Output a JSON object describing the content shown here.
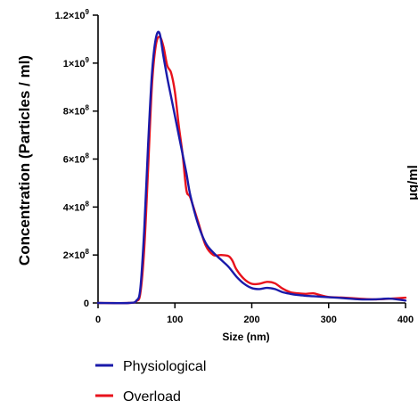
{
  "chart_data": {
    "type": "line",
    "title": "",
    "xlabel": "Size (nm)",
    "ylabel": "Concentration (Particles / ml)",
    "xlim": [
      0,
      400
    ],
    "ylim": [
      0,
      1200000000
    ],
    "x_ticks": [
      "0",
      "100",
      "200",
      "300",
      "400"
    ],
    "y_ticks": [
      {
        "value": 0,
        "base": "0",
        "exp": ""
      },
      {
        "value": 200000000,
        "base": "2×10",
        "exp": "8"
      },
      {
        "value": 400000000,
        "base": "4×10",
        "exp": "8"
      },
      {
        "value": 600000000,
        "base": "6×10",
        "exp": "8"
      },
      {
        "value": 800000000,
        "base": "8×10",
        "exp": "8"
      },
      {
        "value": 1000000000,
        "base": "1×10",
        "exp": "9"
      },
      {
        "value": 1200000000,
        "base": "1.2×10",
        "exp": "9"
      }
    ],
    "grid": false,
    "legend_position": "bottom-left",
    "series": [
      {
        "name": "Physiological",
        "color": "#1a1aaa",
        "x": [
          0,
          40,
          50,
          55,
          60,
          65,
          70,
          75,
          80,
          85,
          90,
          95,
          100,
          105,
          110,
          115,
          120,
          130,
          140,
          150,
          160,
          170,
          180,
          190,
          200,
          210,
          220,
          230,
          240,
          250,
          260,
          270,
          280,
          290,
          300,
          320,
          340,
          360,
          380,
          400
        ],
        "y": [
          0,
          0,
          10000000,
          60000000,
          300000000,
          650000000,
          950000000,
          1100000000,
          1125000000,
          1030000000,
          940000000,
          860000000,
          780000000,
          700000000,
          620000000,
          540000000,
          450000000,
          330000000,
          250000000,
          210000000,
          180000000,
          150000000,
          110000000,
          80000000,
          62000000,
          58000000,
          63000000,
          58000000,
          45000000,
          38000000,
          33000000,
          30000000,
          28000000,
          26000000,
          24000000,
          20000000,
          15000000,
          15000000,
          18000000,
          10000000
        ]
      },
      {
        "name": "Overload",
        "color": "#e8121c",
        "x": [
          0,
          40,
          50,
          55,
          60,
          65,
          70,
          75,
          80,
          85,
          90,
          95,
          100,
          105,
          110,
          115,
          120,
          130,
          140,
          150,
          160,
          170,
          175,
          180,
          190,
          200,
          210,
          220,
          230,
          240,
          250,
          260,
          270,
          280,
          290,
          300,
          320,
          340,
          360,
          380,
          400
        ],
        "y": [
          0,
          0,
          8000000,
          40000000,
          220000000,
          550000000,
          900000000,
          1070000000,
          1110000000,
          1070000000,
          990000000,
          960000000,
          880000000,
          740000000,
          620000000,
          470000000,
          440000000,
          340000000,
          240000000,
          200000000,
          200000000,
          195000000,
          175000000,
          140000000,
          100000000,
          80000000,
          80000000,
          88000000,
          82000000,
          60000000,
          45000000,
          40000000,
          38000000,
          40000000,
          32000000,
          25000000,
          22000000,
          18000000,
          15000000,
          18000000,
          22000000
        ]
      }
    ]
  },
  "clipped_label": "µg/ml"
}
